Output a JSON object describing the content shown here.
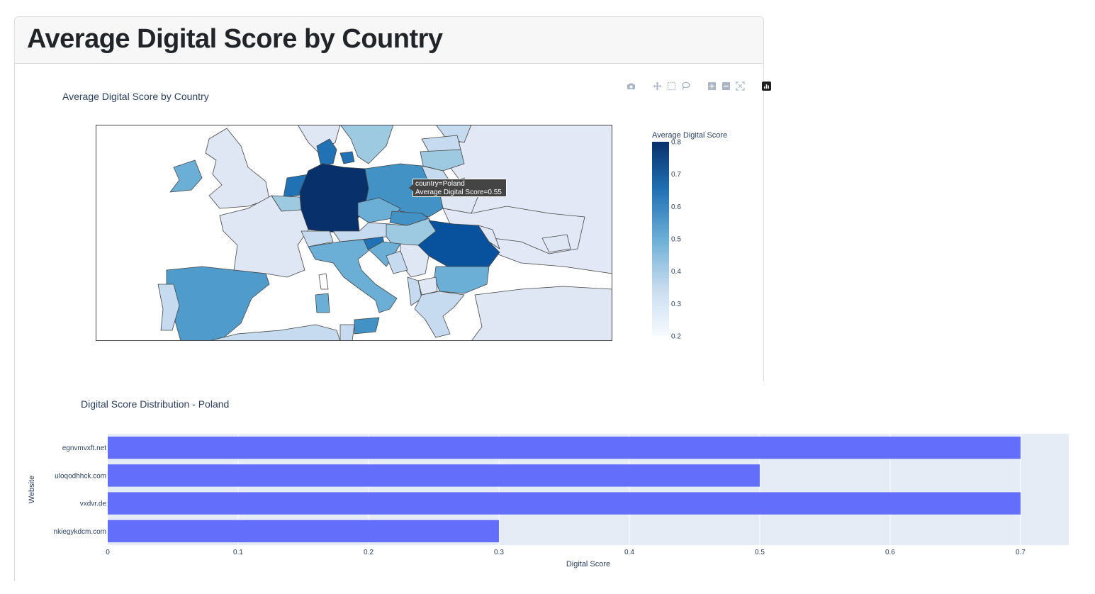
{
  "page": {
    "title": "Average Digital Score by Country"
  },
  "modebar": {
    "icons": [
      "camera-icon",
      "pan-icon",
      "box-select-icon",
      "lasso-icon",
      "zoom-in-icon",
      "zoom-out-icon",
      "autoscale-icon",
      "plotly-logo-icon"
    ]
  },
  "map": {
    "title": "Average Digital Score by Country",
    "tooltip": {
      "line1": "country=Poland",
      "line2": "Average Digital Score=0.55"
    }
  },
  "bar": {
    "title": "Digital Score Distribution - Poland"
  },
  "chart_data": [
    {
      "type": "choropleth",
      "title": "Average Digital Score by Country",
      "colorbar": {
        "title": "Average Digital Score",
        "ticks": [
          0.8,
          0.7,
          0.6,
          0.5,
          0.4,
          0.3,
          0.2
        ],
        "range": [
          0.2,
          0.8
        ],
        "colorscale": [
          "#f7fbff",
          "#c6dbef",
          "#6baed6",
          "#2171b5",
          "#08306b"
        ]
      },
      "hover": {
        "country": "Poland",
        "value": 0.55
      }
    },
    {
      "type": "bar",
      "orientation": "horizontal",
      "title": "Digital Score Distribution - Poland",
      "categories": [
        "egnvmvxft.net",
        "uloqodhhck.com",
        "vxdvr.de",
        "nkiegykdcm.com"
      ],
      "values": [
        0.7,
        0.5,
        0.7,
        0.3
      ],
      "xlabel": "Digital Score",
      "ylabel": "Website",
      "xticks": [
        0,
        0.1,
        0.2,
        0.3,
        0.4,
        0.5,
        0.6,
        0.7
      ],
      "xlim": [
        0,
        0.737
      ],
      "bar_color": "#636efa",
      "plot_bg": "#e5ecf6",
      "grid": true
    }
  ]
}
